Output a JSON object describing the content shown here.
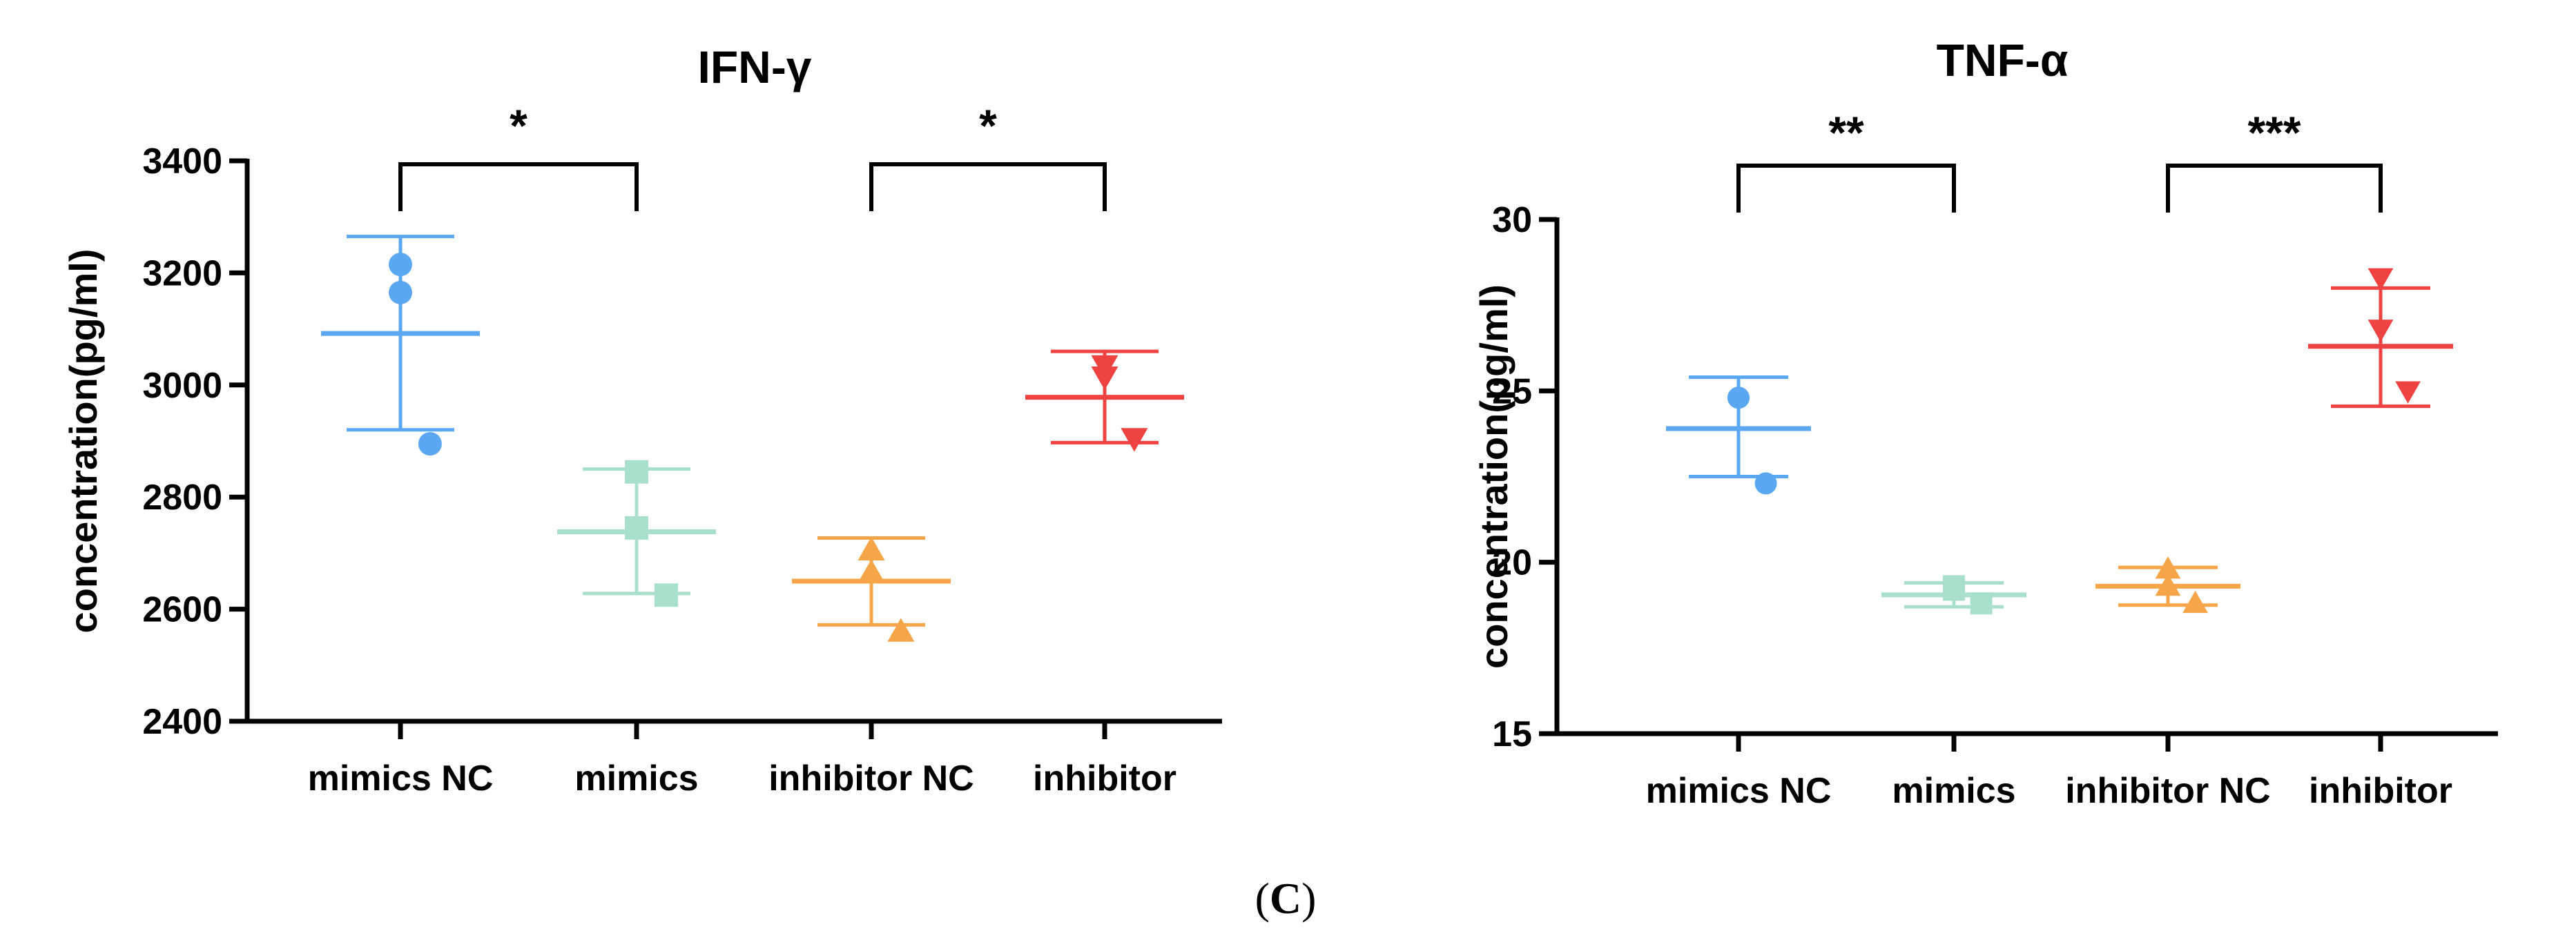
{
  "figure": {
    "panel_label": {
      "open": "(",
      "letter": "C",
      "close": ")"
    }
  },
  "chart_data": [
    {
      "type": "scatter",
      "title": "IFN-γ",
      "xlabel": "",
      "ylabel": "concentration(pg/ml)",
      "ylim": [
        2400,
        3400
      ],
      "yticks": [
        2400,
        2600,
        2800,
        3000,
        3200,
        3400
      ],
      "categories": [
        "mimics NC",
        "mimics",
        "inhibitor NC",
        "inhibitor"
      ],
      "grid": false,
      "legend": "none",
      "groups": [
        {
          "name": "mimics NC",
          "color": "#5aa7f2",
          "marker": "circle",
          "points": [
            3215,
            3165,
            2895
          ],
          "mean": 3092,
          "sd_upper": 3265,
          "sd_lower": 2920
        },
        {
          "name": "mimics",
          "color": "#a8e0cc",
          "marker": "square",
          "points": [
            2845,
            2745,
            2625
          ],
          "mean": 2738,
          "sd_upper": 2850,
          "sd_lower": 2628
        },
        {
          "name": "inhibitor NC",
          "color": "#f6a548",
          "marker": "triangle-up",
          "points": [
            2705,
            2665,
            2560
          ],
          "mean": 2650,
          "sd_upper": 2727,
          "sd_lower": 2572
        },
        {
          "name": "inhibitor",
          "color": "#ee4340",
          "marker": "triangle-down",
          "points": [
            3035,
            3015,
            2905
          ],
          "mean": 2978,
          "sd_upper": 3060,
          "sd_lower": 2897
        }
      ],
      "comparisons": [
        {
          "from": 0,
          "to": 1,
          "label": "*"
        },
        {
          "from": 2,
          "to": 3,
          "label": "*"
        }
      ]
    },
    {
      "type": "scatter",
      "title": "TNF-α",
      "xlabel": "",
      "ylabel": "concentration(pg/ml)",
      "ylim": [
        15,
        30
      ],
      "yticks": [
        15,
        20,
        25,
        30
      ],
      "categories": [
        "mimics NC",
        "mimics",
        "inhibitor NC",
        "inhibitor"
      ],
      "grid": false,
      "legend": "none",
      "groups": [
        {
          "name": "mimics NC",
          "color": "#5aa7f2",
          "marker": "circle",
          "points": [
            24.8,
            24.8,
            22.3
          ],
          "mean": 23.9,
          "sd_upper": 25.4,
          "sd_lower": 22.5
        },
        {
          "name": "mimics",
          "color": "#a8e0cc",
          "marker": "square",
          "points": [
            19.3,
            19.2,
            18.8
          ],
          "mean": 19.05,
          "sd_upper": 19.4,
          "sd_lower": 18.7
        },
        {
          "name": "inhibitor NC",
          "color": "#f6a548",
          "marker": "triangle-up",
          "points": [
            19.8,
            19.3,
            18.8
          ],
          "mean": 19.3,
          "sd_upper": 19.85,
          "sd_lower": 18.75
        },
        {
          "name": "inhibitor",
          "color": "#ee4340",
          "marker": "triangle-down",
          "points": [
            28.3,
            26.8,
            25.0
          ],
          "mean": 26.3,
          "sd_upper": 28.0,
          "sd_lower": 24.55
        }
      ],
      "comparisons": [
        {
          "from": 0,
          "to": 1,
          "label": "**"
        },
        {
          "from": 2,
          "to": 3,
          "label": "***"
        }
      ]
    }
  ]
}
